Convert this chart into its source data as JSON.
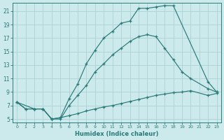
{
  "xlabel": "Humidex (Indice chaleur)",
  "bg_color": "#cce9eb",
  "grid_color": "#b0d4d8",
  "line_color": "#2a7a7a",
  "xlim": [
    -0.5,
    23.5
  ],
  "ylim": [
    4.5,
    22.2
  ],
  "xticks": [
    0,
    1,
    2,
    3,
    4,
    5,
    6,
    7,
    8,
    9,
    10,
    11,
    12,
    13,
    14,
    15,
    16,
    17,
    18,
    19,
    20,
    21,
    22,
    23
  ],
  "yticks": [
    5,
    7,
    9,
    11,
    13,
    15,
    17,
    19,
    21
  ],
  "curve_top_x": [
    0,
    1,
    2,
    3,
    4,
    5,
    6,
    7,
    8,
    9,
    10,
    11,
    12,
    13,
    14,
    15,
    16,
    17,
    18,
    22,
    23
  ],
  "curve_top_y": [
    7.5,
    6.5,
    6.5,
    6.5,
    5.0,
    5.2,
    8.0,
    10.2,
    13.2,
    15.2,
    17.0,
    18.0,
    19.2,
    19.5,
    21.4,
    21.4,
    21.6,
    21.8,
    21.8,
    10.5,
    9.0
  ],
  "curve_mid_x": [
    0,
    1,
    2,
    3,
    4,
    5,
    6,
    7,
    8,
    9,
    10,
    11,
    12,
    13,
    14,
    15,
    16,
    17,
    18,
    19,
    20,
    22,
    23
  ],
  "curve_mid_y": [
    7.5,
    6.5,
    6.5,
    6.5,
    5.0,
    5.0,
    7.0,
    8.5,
    10.0,
    12.0,
    13.2,
    14.5,
    15.5,
    16.5,
    17.2,
    17.5,
    17.2,
    15.5,
    13.8,
    12.0,
    11.0,
    9.5,
    9.0
  ],
  "curve_bot_x": [
    0,
    2,
    3,
    4,
    5,
    6,
    7,
    8,
    9,
    10,
    11,
    12,
    13,
    14,
    15,
    16,
    17,
    18,
    19,
    20,
    22,
    23
  ],
  "curve_bot_y": [
    7.5,
    6.5,
    6.5,
    5.0,
    5.2,
    5.5,
    5.8,
    6.2,
    6.5,
    6.8,
    7.0,
    7.3,
    7.6,
    7.9,
    8.2,
    8.5,
    8.7,
    8.9,
    9.0,
    9.2,
    8.5,
    8.8
  ]
}
